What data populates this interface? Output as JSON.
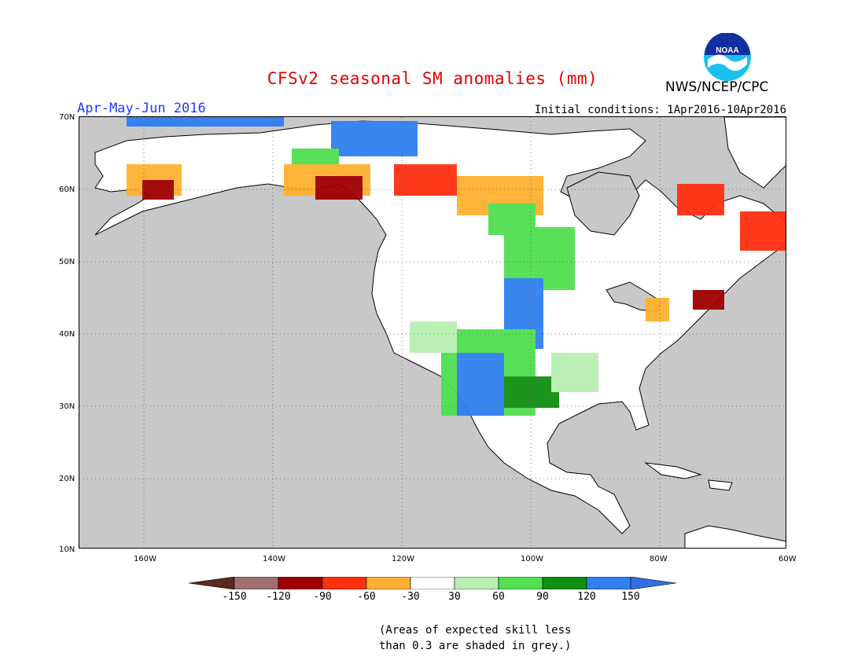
{
  "header": {
    "title": "CFSv2 seasonal SM anomalies (mm)",
    "period": "Apr-May-Jun 2016",
    "initial_conditions": "Initial conditions: 1Apr2016-10Apr2016",
    "agency": "NWS/NCEP/CPC",
    "logo_text": "NOAA"
  },
  "map": {
    "lat_labels": [
      "70N",
      "60N",
      "50N",
      "40N",
      "30N",
      "20N",
      "10N"
    ],
    "lon_labels": [
      "160W",
      "140W",
      "120W",
      "100W",
      "80W",
      "60W"
    ],
    "ocean_color": "#c8c8c8",
    "grid": "dotted every 10 degrees"
  },
  "colorbar": {
    "labels": [
      "-150",
      "-120",
      "-90",
      "-60",
      "-30",
      "30",
      "60",
      "90",
      "120",
      "150"
    ],
    "colors": [
      "#5a2a1e",
      "#a07070",
      "#a00000",
      "#ff3010",
      "#ffb030",
      "#ffffff",
      "#b8f0b0",
      "#50e050",
      "#109010",
      "#3080f0",
      "#3070e0"
    ]
  },
  "footnote": {
    "line1": "(Areas of expected skill less",
    "line2": "than 0.3 are shaded in grey.)"
  }
}
